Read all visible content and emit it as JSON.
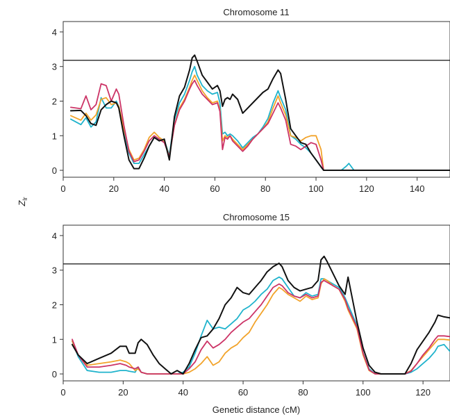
{
  "figure": {
    "ylabel_main": "Z",
    "ylabel_sub": "lr",
    "xlabel": "Genetic distance (cM)"
  },
  "colors": {
    "black": "#111111",
    "cyan": "#1fb3cc",
    "orange": "#f2a32a",
    "magenta": "#cc3366",
    "threshold": "#111111"
  },
  "chart_data": [
    {
      "type": "line",
      "title": "Chromosome 11",
      "xlim": [
        0,
        153
      ],
      "ylim": [
        -0.2,
        4.3
      ],
      "xticks": [
        0,
        20,
        40,
        60,
        80,
        100,
        120,
        140
      ],
      "yticks": [
        0,
        1,
        2,
        3,
        4
      ],
      "threshold": 3.18,
      "series": [
        {
          "color": "black",
          "x": [
            3,
            7,
            9,
            11,
            13,
            15,
            17,
            19,
            21,
            22,
            24,
            26,
            28,
            30,
            32,
            34,
            36,
            38,
            40,
            42,
            44,
            46,
            48,
            50,
            51,
            52,
            53,
            55,
            57,
            59,
            61,
            62,
            63,
            64,
            65,
            66,
            67,
            69,
            71,
            73,
            75,
            77,
            79,
            81,
            83,
            85,
            86,
            88,
            90,
            92,
            94,
            96,
            98,
            100,
            102,
            103,
            153
          ],
          "y": [
            1.72,
            1.73,
            1.58,
            1.35,
            1.3,
            1.75,
            1.9,
            2.0,
            1.95,
            1.8,
            1.0,
            0.3,
            0.05,
            0.05,
            0.35,
            0.7,
            0.95,
            0.85,
            0.9,
            0.3,
            1.55,
            2.15,
            2.4,
            2.9,
            3.25,
            3.33,
            3.15,
            2.75,
            2.55,
            2.35,
            2.45,
            2.3,
            1.85,
            2.05,
            2.1,
            2.05,
            2.2,
            2.05,
            1.65,
            1.8,
            1.95,
            2.1,
            2.25,
            2.35,
            2.65,
            2.9,
            2.8,
            2.05,
            1.2,
            1.0,
            0.8,
            0.75,
            0.5,
            0.3,
            0.1,
            0.0,
            0.0
          ]
        },
        {
          "color": "cyan",
          "x": [
            3,
            7,
            9,
            11,
            13,
            15,
            17,
            19,
            21,
            22,
            24,
            26,
            28,
            30,
            32,
            34,
            36,
            38,
            40,
            42,
            44,
            46,
            48,
            50,
            51,
            52,
            53,
            55,
            57,
            59,
            61,
            62,
            63,
            64,
            65,
            66,
            67,
            69,
            71,
            73,
            75,
            77,
            79,
            81,
            83,
            85,
            86,
            88,
            90,
            92,
            94,
            96,
            98,
            100,
            102,
            103,
            110,
            112,
            113,
            115,
            153
          ],
          "y": [
            1.48,
            1.32,
            1.52,
            1.25,
            1.4,
            2.1,
            1.8,
            1.8,
            2.0,
            1.85,
            1.1,
            0.5,
            0.2,
            0.2,
            0.45,
            0.7,
            0.95,
            0.9,
            0.85,
            0.45,
            1.45,
            1.95,
            2.2,
            2.6,
            2.85,
            3.0,
            2.75,
            2.45,
            2.3,
            2.2,
            2.25,
            1.95,
            1.05,
            1.1,
            1.0,
            1.05,
            1.0,
            0.85,
            0.65,
            0.8,
            0.95,
            1.05,
            1.25,
            1.5,
            1.95,
            2.3,
            2.1,
            1.75,
            1.0,
            0.9,
            0.75,
            0.65,
            0.5,
            0.3,
            0.1,
            0.0,
            0.0,
            0.12,
            0.2,
            0.0,
            0.0
          ]
        },
        {
          "color": "orange",
          "x": [
            3,
            7,
            9,
            11,
            13,
            15,
            17,
            19,
            21,
            22,
            24,
            26,
            28,
            30,
            32,
            34,
            36,
            38,
            40,
            42,
            44,
            46,
            48,
            50,
            51,
            52,
            53,
            55,
            57,
            59,
            61,
            62,
            63,
            64,
            65,
            66,
            67,
            69,
            71,
            73,
            75,
            77,
            79,
            81,
            83,
            85,
            86,
            88,
            90,
            92,
            94,
            96,
            98,
            100,
            102,
            103,
            153
          ],
          "y": [
            1.58,
            1.45,
            1.65,
            1.45,
            1.6,
            2.05,
            2.1,
            1.9,
            1.95,
            1.85,
            1.2,
            0.6,
            0.3,
            0.35,
            0.6,
            0.95,
            1.1,
            0.95,
            0.85,
            0.4,
            1.3,
            1.8,
            2.05,
            2.4,
            2.6,
            2.75,
            2.6,
            2.3,
            2.1,
            1.95,
            2.0,
            1.75,
            0.85,
            1.0,
            0.95,
            1.0,
            0.9,
            0.75,
            0.6,
            0.75,
            0.9,
            1.05,
            1.2,
            1.4,
            1.8,
            2.15,
            1.95,
            1.6,
            1.0,
            0.95,
            0.85,
            0.95,
            1.0,
            1.0,
            0.6,
            0.0,
            0.0
          ]
        },
        {
          "color": "magenta",
          "x": [
            3,
            7,
            9,
            11,
            13,
            15,
            17,
            19,
            21,
            22,
            24,
            26,
            28,
            30,
            32,
            34,
            36,
            38,
            40,
            42,
            44,
            46,
            48,
            50,
            51,
            52,
            53,
            55,
            57,
            59,
            61,
            62,
            63,
            64,
            65,
            66,
            67,
            69,
            71,
            73,
            75,
            77,
            79,
            81,
            83,
            85,
            86,
            88,
            90,
            92,
            94,
            96,
            98,
            100,
            102,
            103,
            153
          ],
          "y": [
            1.82,
            1.78,
            2.15,
            1.75,
            1.9,
            2.5,
            2.45,
            2.0,
            2.35,
            2.2,
            1.3,
            0.55,
            0.25,
            0.3,
            0.55,
            0.85,
            1.0,
            0.9,
            0.8,
            0.4,
            1.3,
            1.75,
            2.0,
            2.35,
            2.5,
            2.6,
            2.45,
            2.2,
            2.05,
            1.9,
            1.95,
            1.7,
            0.6,
            0.95,
            0.9,
            1.0,
            0.85,
            0.7,
            0.55,
            0.7,
            0.9,
            1.05,
            1.2,
            1.35,
            1.65,
            1.95,
            1.8,
            1.45,
            0.75,
            0.7,
            0.6,
            0.7,
            0.8,
            0.75,
            0.3,
            0.0,
            0.0
          ]
        }
      ]
    },
    {
      "type": "line",
      "title": "Chromosome 15",
      "xlim": [
        0,
        129
      ],
      "ylim": [
        -0.2,
        4.3
      ],
      "xticks": [
        0,
        20,
        40,
        60,
        80,
        100,
        120
      ],
      "yticks": [
        0,
        1,
        2,
        3,
        4
      ],
      "threshold": 3.18,
      "series": [
        {
          "color": "black",
          "x": [
            3,
            5,
            8,
            12,
            16,
            19,
            21,
            22,
            24,
            25,
            26,
            28,
            30,
            32,
            34,
            36,
            38,
            40,
            42,
            44,
            46,
            48,
            50,
            52,
            54,
            56,
            58,
            60,
            62,
            64,
            66,
            68,
            70,
            72,
            73,
            75,
            77,
            79,
            81,
            83,
            85,
            86,
            87,
            88,
            90,
            92,
            94,
            95,
            98,
            100,
            102,
            104,
            106,
            108,
            110,
            112,
            114,
            116,
            118,
            120,
            122,
            124,
            125,
            127,
            129
          ],
          "y": [
            0.85,
            0.55,
            0.3,
            0.45,
            0.6,
            0.8,
            0.8,
            0.6,
            0.6,
            0.9,
            1.0,
            0.85,
            0.55,
            0.3,
            0.15,
            0.0,
            0.1,
            0.0,
            0.3,
            0.7,
            1.05,
            1.1,
            1.3,
            1.6,
            2.0,
            2.2,
            2.5,
            2.35,
            2.3,
            2.5,
            2.7,
            2.95,
            3.1,
            3.2,
            3.1,
            2.7,
            2.5,
            2.4,
            2.45,
            2.5,
            2.7,
            3.3,
            3.4,
            3.25,
            2.9,
            2.55,
            2.3,
            2.8,
            1.5,
            0.75,
            0.25,
            0.05,
            0.0,
            0.0,
            0.0,
            0.0,
            0.0,
            0.3,
            0.7,
            0.95,
            1.2,
            1.5,
            1.7,
            1.65,
            1.62
          ]
        },
        {
          "color": "cyan",
          "x": [
            3,
            5,
            8,
            12,
            16,
            19,
            21,
            22,
            24,
            25,
            26,
            28,
            30,
            32,
            34,
            36,
            38,
            40,
            42,
            44,
            46,
            48,
            50,
            52,
            54,
            56,
            58,
            60,
            62,
            64,
            66,
            68,
            70,
            72,
            73,
            75,
            77,
            79,
            81,
            83,
            85,
            86,
            87,
            88,
            90,
            92,
            94,
            95,
            98,
            100,
            102,
            104,
            106,
            108,
            110,
            112,
            114,
            116,
            118,
            120,
            122,
            124,
            125,
            127,
            129
          ],
          "y": [
            0.95,
            0.5,
            0.1,
            0.05,
            0.05,
            0.1,
            0.1,
            0.08,
            0.05,
            0.2,
            0.05,
            0.0,
            0.0,
            0.0,
            0.0,
            0.0,
            0.0,
            0.05,
            0.2,
            0.6,
            1.1,
            1.55,
            1.3,
            1.35,
            1.3,
            1.45,
            1.6,
            1.85,
            1.95,
            2.1,
            2.3,
            2.45,
            2.7,
            2.8,
            2.75,
            2.5,
            2.25,
            2.2,
            2.35,
            2.25,
            2.3,
            2.75,
            2.75,
            2.7,
            2.6,
            2.5,
            2.2,
            2.0,
            1.4,
            0.6,
            0.15,
            0.0,
            0.0,
            0.0,
            0.0,
            0.0,
            0.0,
            0.05,
            0.15,
            0.3,
            0.45,
            0.65,
            0.8,
            0.85,
            0.65
          ]
        },
        {
          "color": "orange",
          "x": [
            3,
            5,
            8,
            12,
            16,
            19,
            21,
            22,
            24,
            25,
            26,
            28,
            30,
            32,
            34,
            36,
            38,
            40,
            42,
            44,
            46,
            48,
            50,
            52,
            54,
            56,
            58,
            60,
            62,
            64,
            66,
            68,
            70,
            72,
            73,
            75,
            77,
            79,
            81,
            83,
            85,
            86,
            87,
            88,
            90,
            92,
            94,
            95,
            98,
            100,
            102,
            104,
            106,
            108,
            110,
            112,
            114,
            116,
            118,
            120,
            122,
            124,
            125,
            127,
            129
          ],
          "y": [
            0.95,
            0.55,
            0.25,
            0.3,
            0.35,
            0.4,
            0.35,
            0.3,
            0.1,
            0.15,
            0.05,
            0.0,
            0.0,
            0.0,
            0.0,
            0.0,
            0.0,
            0.0,
            0.05,
            0.15,
            0.3,
            0.5,
            0.25,
            0.35,
            0.6,
            0.75,
            0.85,
            1.05,
            1.2,
            1.5,
            1.75,
            2.0,
            2.3,
            2.5,
            2.45,
            2.3,
            2.2,
            2.1,
            2.25,
            2.15,
            2.2,
            2.6,
            2.75,
            2.7,
            2.55,
            2.45,
            2.1,
            1.85,
            1.3,
            0.55,
            0.1,
            0.0,
            0.0,
            0.0,
            0.0,
            0.0,
            0.0,
            0.1,
            0.3,
            0.5,
            0.7,
            0.9,
            1.0,
            1.0,
            0.98
          ]
        },
        {
          "color": "magenta",
          "x": [
            3,
            5,
            8,
            12,
            16,
            19,
            21,
            22,
            24,
            25,
            26,
            28,
            30,
            32,
            34,
            36,
            38,
            40,
            42,
            44,
            46,
            48,
            50,
            52,
            54,
            56,
            58,
            60,
            62,
            64,
            66,
            68,
            70,
            72,
            73,
            75,
            77,
            79,
            81,
            83,
            85,
            86,
            87,
            88,
            90,
            92,
            94,
            95,
            98,
            100,
            102,
            104,
            106,
            108,
            110,
            112,
            114,
            116,
            118,
            120,
            122,
            124,
            125,
            127,
            129
          ],
          "y": [
            1.0,
            0.55,
            0.2,
            0.2,
            0.25,
            0.3,
            0.25,
            0.2,
            0.15,
            0.2,
            0.05,
            0.0,
            0.0,
            0.0,
            0.0,
            0.0,
            0.0,
            0.0,
            0.15,
            0.35,
            0.7,
            0.95,
            0.75,
            0.85,
            1.0,
            1.2,
            1.35,
            1.5,
            1.6,
            1.8,
            2.0,
            2.25,
            2.5,
            2.6,
            2.55,
            2.35,
            2.25,
            2.2,
            2.3,
            2.2,
            2.25,
            2.65,
            2.7,
            2.65,
            2.55,
            2.45,
            2.15,
            1.9,
            1.35,
            0.6,
            0.12,
            0.0,
            0.0,
            0.0,
            0.0,
            0.0,
            0.0,
            0.08,
            0.3,
            0.55,
            0.75,
            1.0,
            1.1,
            1.1,
            1.08
          ]
        }
      ]
    }
  ]
}
